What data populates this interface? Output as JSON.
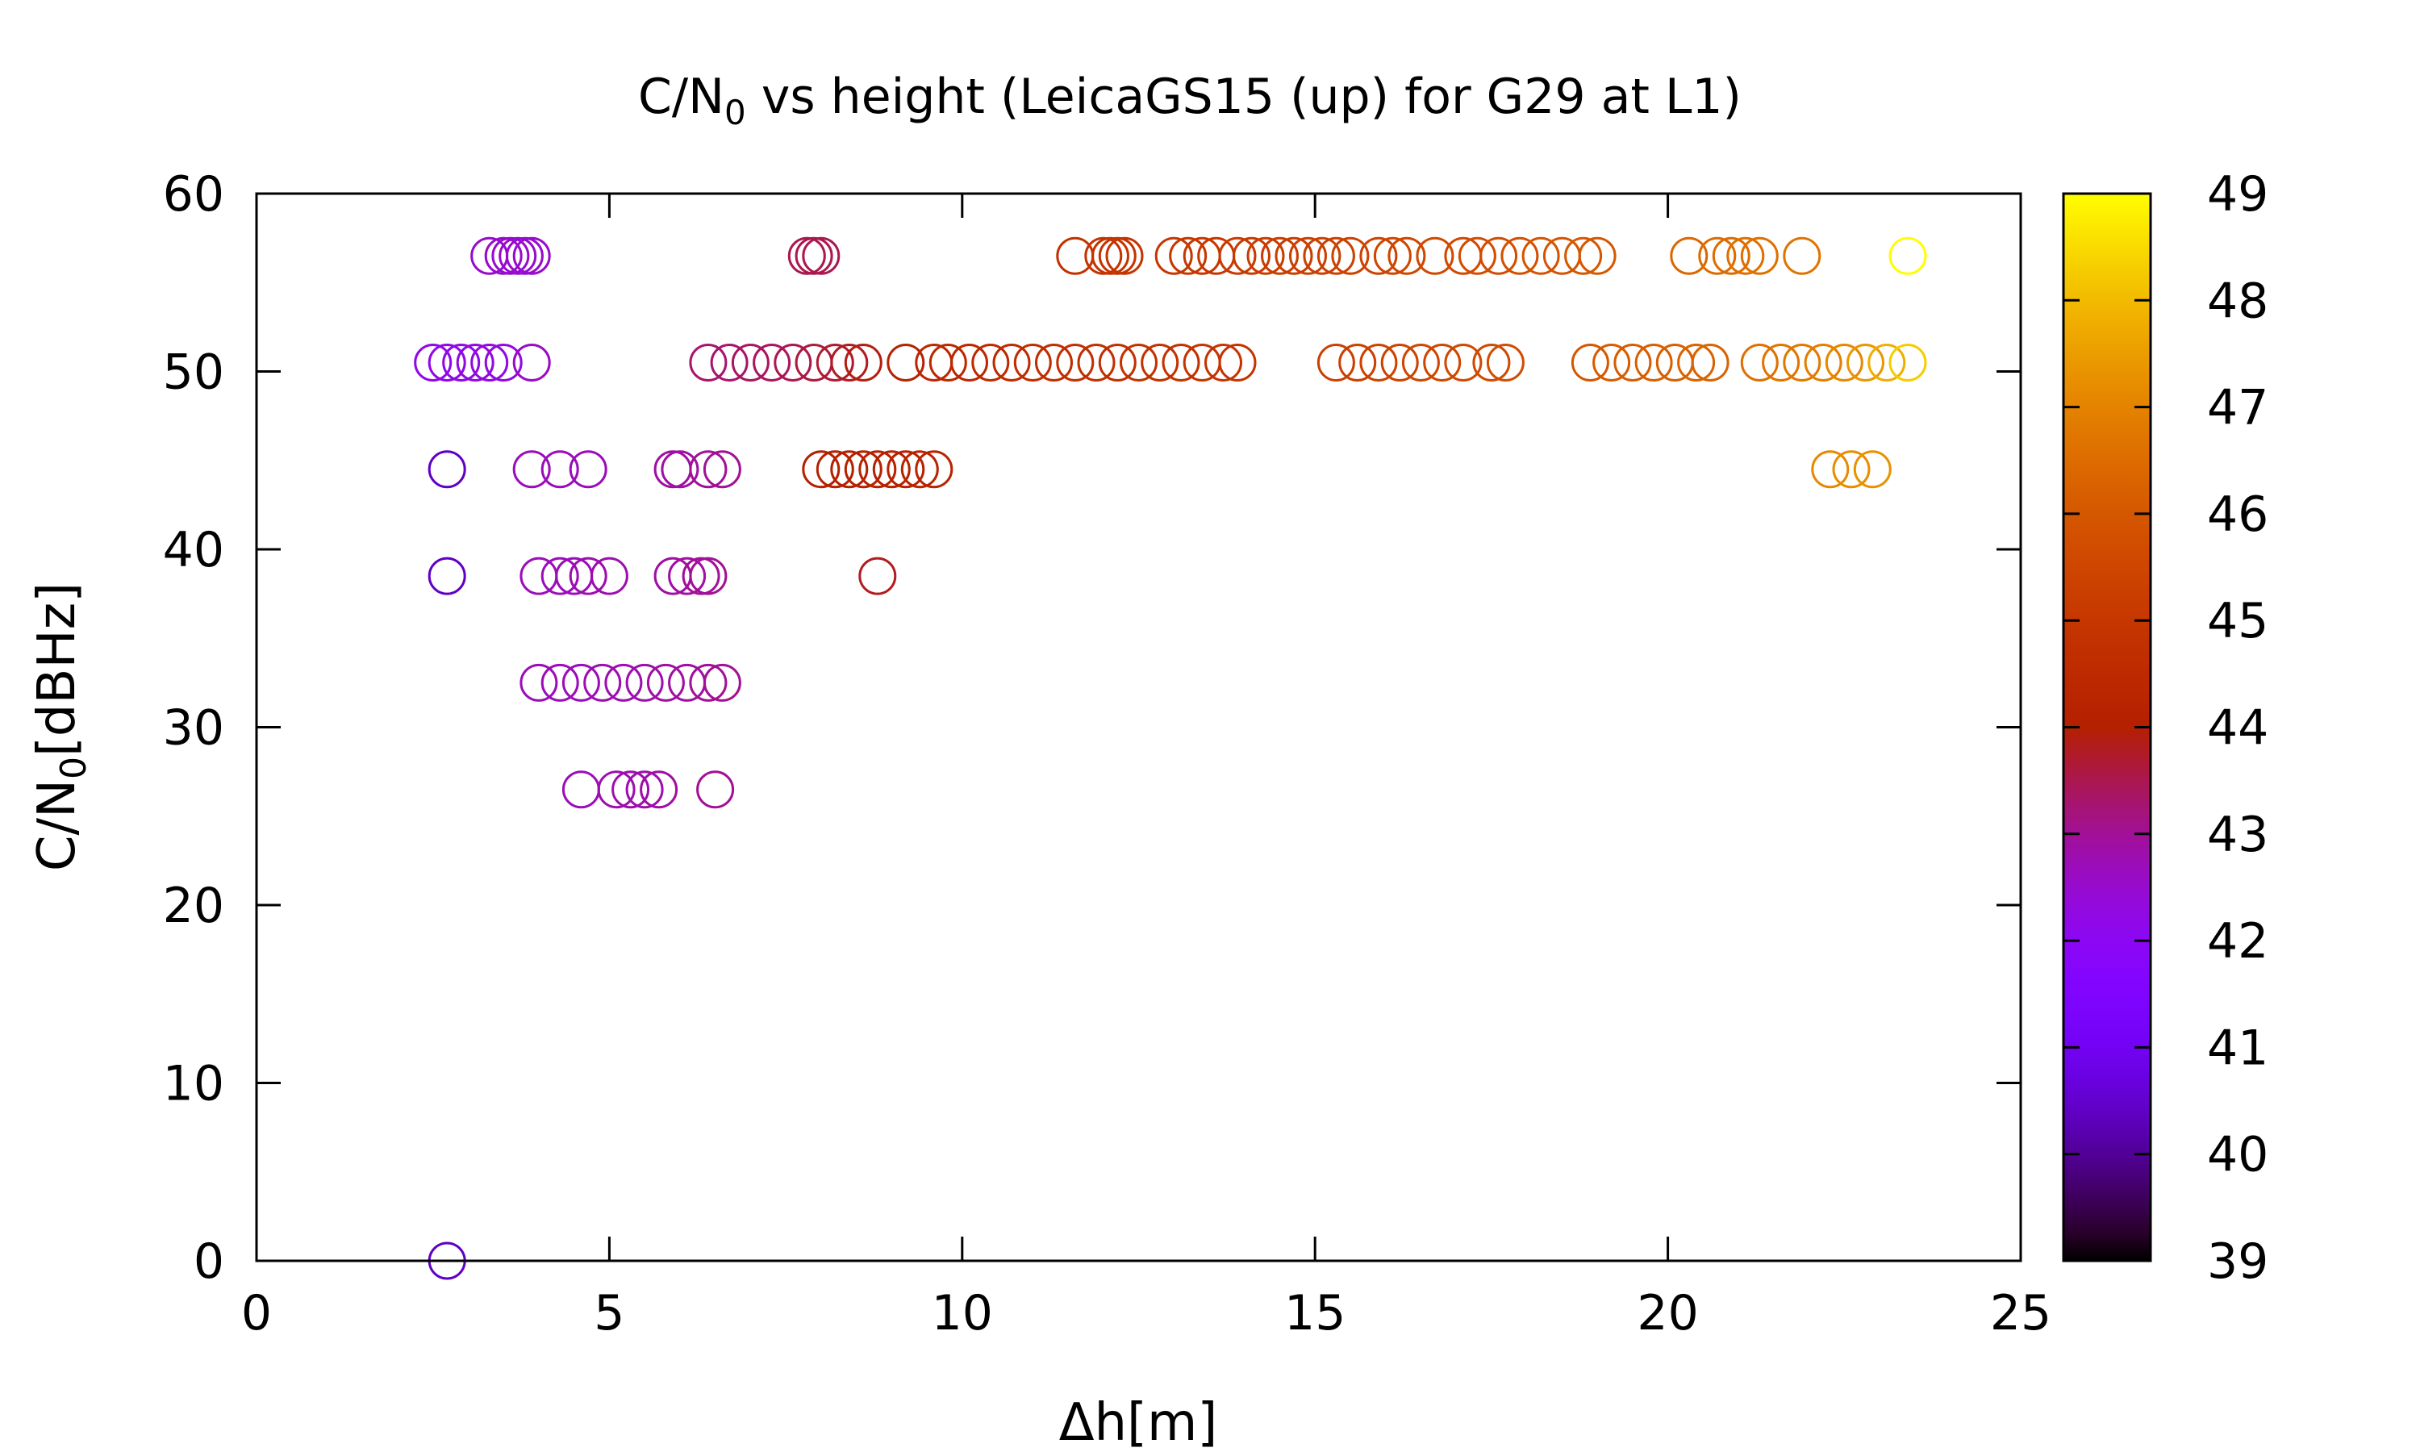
{
  "chart_data": {
    "type": "scatter",
    "title": {
      "prefix": "C/N",
      "subscript": "0",
      "suffix": " vs height (LeicaGS15 (up) for G29 at L1)"
    },
    "xlabel": "Δh[m]",
    "ylabel": {
      "prefix": "C/N",
      "subscript": "0",
      "suffix": "[dBHz]"
    },
    "xlim": [
      0,
      25
    ],
    "ylim": [
      0,
      60
    ],
    "xticks": [
      0,
      5,
      10,
      15,
      20,
      25
    ],
    "yticks": [
      0,
      10,
      20,
      30,
      40,
      50,
      60
    ],
    "grid": false,
    "marker": "open-circle",
    "colorbar": {
      "range": [
        39,
        49
      ],
      "ticks": [
        39,
        40,
        41,
        42,
        43,
        44,
        45,
        46,
        47,
        48,
        49
      ],
      "palette": "gnuplot (black-purple-red-orange-yellow)"
    },
    "series": [
      {
        "y": 56.5,
        "points": [
          [
            3.3,
            42.5
          ],
          [
            3.5,
            42.5
          ],
          [
            3.6,
            42.5
          ],
          [
            3.7,
            42.5
          ],
          [
            3.8,
            42.5
          ],
          [
            3.9,
            42.5
          ],
          [
            7.8,
            43.5
          ],
          [
            7.9,
            43.5
          ],
          [
            8.0,
            43.5
          ],
          [
            11.6,
            44.8
          ],
          [
            12.0,
            44.9
          ],
          [
            12.1,
            44.9
          ],
          [
            12.2,
            44.9
          ],
          [
            12.3,
            44.9
          ],
          [
            13.0,
            45.0
          ],
          [
            13.2,
            45.0
          ],
          [
            13.4,
            45.0
          ],
          [
            13.6,
            45.0
          ],
          [
            13.9,
            45.1
          ],
          [
            14.1,
            45.1
          ],
          [
            14.3,
            45.2
          ],
          [
            14.5,
            45.2
          ],
          [
            14.7,
            45.2
          ],
          [
            14.9,
            45.3
          ],
          [
            15.1,
            45.3
          ],
          [
            15.3,
            45.3
          ],
          [
            15.5,
            45.4
          ],
          [
            15.9,
            45.4
          ],
          [
            16.1,
            45.5
          ],
          [
            16.3,
            45.5
          ],
          [
            16.7,
            45.6
          ],
          [
            17.1,
            45.6
          ],
          [
            17.3,
            45.7
          ],
          [
            17.6,
            45.7
          ],
          [
            17.9,
            45.8
          ],
          [
            18.2,
            45.9
          ],
          [
            18.5,
            45.9
          ],
          [
            18.8,
            46.0
          ],
          [
            19.0,
            46.0
          ],
          [
            20.3,
            46.4
          ],
          [
            20.7,
            46.5
          ],
          [
            20.9,
            46.5
          ],
          [
            21.1,
            46.6
          ],
          [
            21.3,
            46.6
          ],
          [
            21.9,
            46.7
          ],
          [
            23.4,
            49.0
          ]
        ]
      },
      {
        "y": 50.5,
        "points": [
          [
            2.5,
            42.2
          ],
          [
            2.7,
            42.2
          ],
          [
            2.9,
            42.2
          ],
          [
            3.1,
            42.3
          ],
          [
            3.3,
            42.3
          ],
          [
            3.5,
            42.3
          ],
          [
            3.9,
            42.6
          ],
          [
            6.4,
            43.3
          ],
          [
            6.7,
            43.3
          ],
          [
            7.0,
            43.4
          ],
          [
            7.3,
            43.4
          ],
          [
            7.6,
            43.5
          ],
          [
            7.9,
            43.6
          ],
          [
            8.2,
            43.7
          ],
          [
            8.4,
            43.8
          ],
          [
            8.6,
            43.9
          ],
          [
            9.2,
            44.1
          ],
          [
            9.6,
            44.3
          ],
          [
            9.8,
            44.4
          ],
          [
            10.1,
            44.4
          ],
          [
            10.4,
            44.5
          ],
          [
            10.7,
            44.5
          ],
          [
            11.0,
            44.6
          ],
          [
            11.3,
            44.6
          ],
          [
            11.6,
            44.7
          ],
          [
            11.9,
            44.7
          ],
          [
            12.2,
            44.7
          ],
          [
            12.5,
            44.8
          ],
          [
            12.8,
            44.8
          ],
          [
            13.1,
            44.8
          ],
          [
            13.4,
            44.9
          ],
          [
            13.7,
            44.9
          ],
          [
            13.9,
            44.9
          ],
          [
            15.3,
            45.3
          ],
          [
            15.6,
            45.3
          ],
          [
            15.9,
            45.4
          ],
          [
            16.2,
            45.4
          ],
          [
            16.5,
            45.5
          ],
          [
            16.8,
            45.5
          ],
          [
            17.1,
            45.6
          ],
          [
            17.5,
            45.6
          ],
          [
            17.7,
            45.7
          ],
          [
            18.9,
            46.0
          ],
          [
            19.2,
            46.1
          ],
          [
            19.5,
            46.1
          ],
          [
            19.8,
            46.2
          ],
          [
            20.1,
            46.2
          ],
          [
            20.4,
            46.3
          ],
          [
            20.6,
            46.3
          ],
          [
            21.3,
            46.6
          ],
          [
            21.6,
            46.7
          ],
          [
            21.9,
            46.8
          ],
          [
            22.2,
            46.9
          ],
          [
            22.5,
            47.1
          ],
          [
            22.8,
            47.4
          ],
          [
            23.1,
            47.8
          ],
          [
            23.4,
            48.3
          ]
        ]
      },
      {
        "y": 44.5,
        "points": [
          [
            2.7,
            40.4
          ],
          [
            3.9,
            42.7
          ],
          [
            4.3,
            42.7
          ],
          [
            4.7,
            42.7
          ],
          [
            5.9,
            42.9
          ],
          [
            6.0,
            42.9
          ],
          [
            6.4,
            43.0
          ],
          [
            6.6,
            43.0
          ],
          [
            8.0,
            44.0
          ],
          [
            8.2,
            44.0
          ],
          [
            8.4,
            44.0
          ],
          [
            8.6,
            44.1
          ],
          [
            8.8,
            44.1
          ],
          [
            9.0,
            44.1
          ],
          [
            9.2,
            44.1
          ],
          [
            9.4,
            44.2
          ],
          [
            9.6,
            44.2
          ],
          [
            22.3,
            47.1
          ],
          [
            22.6,
            47.2
          ],
          [
            22.9,
            47.3
          ]
        ]
      },
      {
        "y": 38.5,
        "points": [
          [
            2.7,
            40.4
          ],
          [
            4.0,
            42.7
          ],
          [
            4.3,
            42.7
          ],
          [
            4.5,
            42.7
          ],
          [
            4.7,
            42.8
          ],
          [
            5.0,
            42.8
          ],
          [
            5.9,
            42.9
          ],
          [
            6.1,
            42.9
          ],
          [
            6.3,
            43.0
          ],
          [
            6.4,
            43.0
          ],
          [
            8.8,
            43.8
          ]
        ]
      },
      {
        "y": 32.5,
        "points": [
          [
            4.0,
            42.7
          ],
          [
            4.3,
            42.7
          ],
          [
            4.6,
            42.7
          ],
          [
            4.9,
            42.8
          ],
          [
            5.2,
            42.8
          ],
          [
            5.5,
            42.8
          ],
          [
            5.8,
            42.9
          ],
          [
            6.1,
            42.9
          ],
          [
            6.4,
            43.0
          ],
          [
            6.6,
            43.0
          ]
        ]
      },
      {
        "y": 26.5,
        "points": [
          [
            4.6,
            42.7
          ],
          [
            5.1,
            42.8
          ],
          [
            5.3,
            42.8
          ],
          [
            5.5,
            42.8
          ],
          [
            5.7,
            42.9
          ],
          [
            6.5,
            43.0
          ]
        ]
      },
      {
        "y": 0,
        "points": [
          [
            2.7,
            40.4
          ]
        ]
      }
    ]
  }
}
